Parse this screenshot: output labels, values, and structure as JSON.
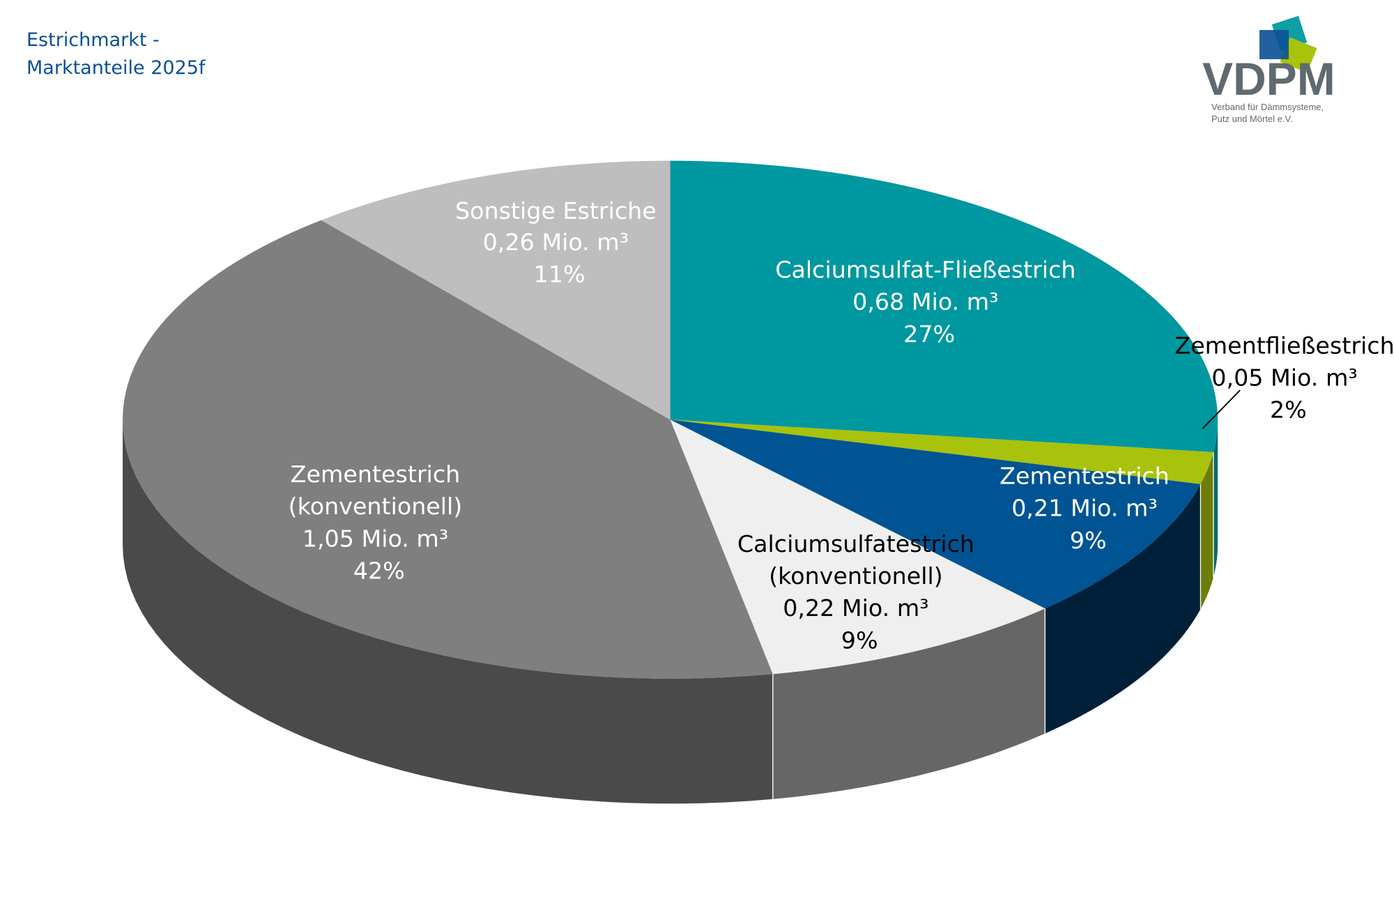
{
  "title": {
    "line1": "Estrichmarkt -",
    "line2": "Marktanteile 2025f"
  },
  "logo": {
    "name": "VDPM",
    "subtitle1": "Verband für Dämmsysteme,",
    "subtitle2": "Putz und Mörtel e.V.",
    "colors": [
      "#0a5096",
      "#009aa0",
      "#a8c30a"
    ]
  },
  "chart_data": {
    "type": "pie",
    "style": "3d",
    "unit": "Mio. m³",
    "start": "12 o'clock, clockwise",
    "slices": [
      {
        "name": "Calciumsulfat-Fließestrich",
        "value": 0.68,
        "percent": 27,
        "value_label": "0,68 Mio. m³",
        "percent_label": "27%",
        "color": "#0098a0",
        "side": "#006a70",
        "text": "#ffffff"
      },
      {
        "name": "Zementfließestrich",
        "value": 0.05,
        "percent": 2,
        "value_label": "0,05 Mio. m³",
        "percent_label": "2%",
        "color": "#a9c20b",
        "side": "#6d7d08",
        "text": "#000000"
      },
      {
        "name": "Zementestrich",
        "value": 0.21,
        "percent": 9,
        "value_label": "0,21 Mio. m³",
        "percent_label": "9%",
        "color": "#005493",
        "side": "#00203a",
        "text": "#ffffff"
      },
      {
        "name": "Calciumsulfatestrich (konventionell)",
        "name_lines": [
          "Calciumsulfatestrich",
          "(konventionell)"
        ],
        "value": 0.22,
        "percent": 9,
        "value_label": "0,22 Mio. m³",
        "percent_label": "9%",
        "color": "#efefef",
        "side": "#666666",
        "text": "#000000"
      },
      {
        "name": "Zementestrich (konventionell)",
        "name_lines": [
          "Zementestrich",
          "(konventionell)"
        ],
        "value": 1.05,
        "percent": 42,
        "value_label": "1,05 Mio. m³",
        "percent_label": "42%",
        "color": "#7f7f7f",
        "side": "#4a4a4a",
        "text": "#ffffff"
      },
      {
        "name": "Sonstige Estriche",
        "value": 0.26,
        "percent": 11,
        "value_label": "0,26 Mio. m³",
        "percent_label": "11%",
        "color": "#bebebe",
        "side": "#8a8a8a",
        "text": "#ffffff"
      }
    ]
  }
}
